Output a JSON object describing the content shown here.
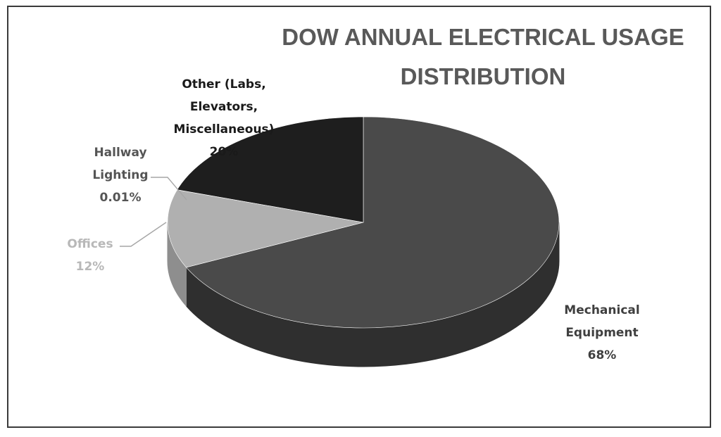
{
  "chart_data": {
    "type": "pie",
    "title_lines": [
      "DOW ANNUAL ELECTRICAL USAGE",
      "DISTRIBUTION"
    ],
    "slices": [
      {
        "label_lines": [
          "Mechanical",
          "Equipment"
        ],
        "value": 68,
        "value_label": "68%",
        "color": "#4a4a4a",
        "side_color": "#2f2f2f",
        "label_color": "#3f3f3f"
      },
      {
        "label_lines": [
          "Offices"
        ],
        "value": 12,
        "value_label": "12%",
        "color": "#b0b0b0",
        "side_color": "#8e8e8e",
        "label_color": "#b8b8b8"
      },
      {
        "label_lines": [
          "Hallway",
          "Lighting"
        ],
        "value": 0.01,
        "value_label": "0.01%",
        "color": "#6a6a6a",
        "side_color": "#505050",
        "label_color": "#555555"
      },
      {
        "label_lines": [
          "Other (Labs,",
          "Elevators,",
          "Miscellaneous)"
        ],
        "value": 20,
        "value_label": "20%",
        "color": "#1e1e1e",
        "side_color": "#111111",
        "label_color": "#1a1a1a"
      }
    ],
    "legend": "none",
    "style": "3d"
  }
}
